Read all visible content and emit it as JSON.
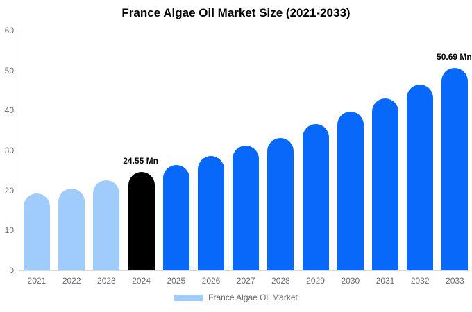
{
  "title": "France Algae Oil Market Size (2021-2033)",
  "legend": {
    "label": "France Algae Oil Market"
  },
  "colors": {
    "historical": "#9fccfb",
    "base_year": "#000000",
    "forecast": "#0768fa",
    "axis_line": "#d9d9d9",
    "axis_text": "#6b6b6b",
    "title_text": "#000000",
    "background": "#ffffff"
  },
  "chart_data": {
    "type": "bar",
    "title": "France Algae Oil Market Size (2021-2033)",
    "unit": "Mn",
    "categories": [
      "2021",
      "2022",
      "2023",
      "2024",
      "2025",
      "2026",
      "2027",
      "2028",
      "2029",
      "2030",
      "2031",
      "2032",
      "2033"
    ],
    "values": [
      19.2,
      20.5,
      22.5,
      24.55,
      26.4,
      28.6,
      31.2,
      33.1,
      36.6,
      39.7,
      43.0,
      46.5,
      50.69
    ],
    "bar_styles": [
      "historical",
      "historical",
      "historical",
      "base_year",
      "forecast",
      "forecast",
      "forecast",
      "forecast",
      "forecast",
      "forecast",
      "forecast",
      "forecast",
      "forecast"
    ],
    "annotations": [
      {
        "category": "2024",
        "text": "24.55 Mn"
      },
      {
        "category": "2033",
        "text": "50.69 Mn"
      }
    ],
    "y_ticks": [
      0,
      10,
      20,
      30,
      40,
      50,
      60
    ],
    "ylim": [
      0,
      60
    ],
    "xlabel": "",
    "ylabel": "",
    "grid": false,
    "legend_position": "bottom",
    "series_name": "France Algae Oil Market"
  }
}
